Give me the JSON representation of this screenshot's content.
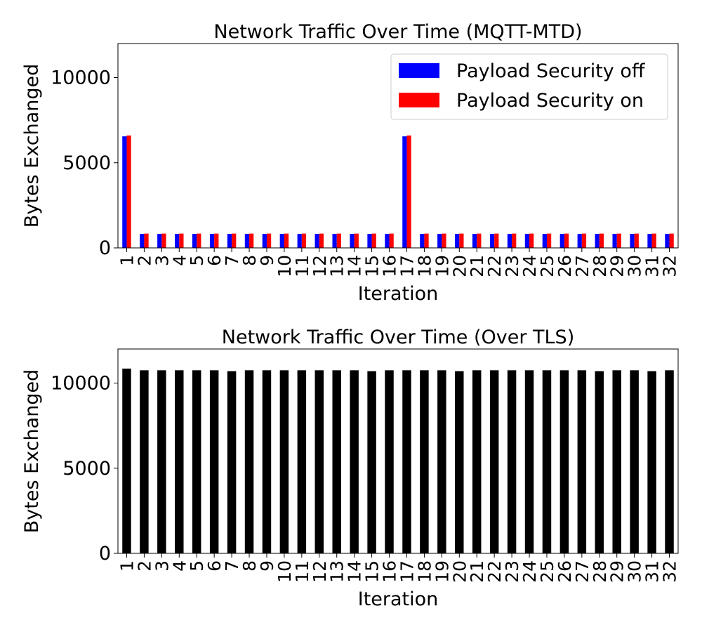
{
  "chart_data": [
    {
      "type": "bar",
      "title": "Network Traffic Over Time (MQTT-MTD)",
      "xlabel": "Iteration",
      "ylabel": "Bytes Exchanged",
      "ylim": [
        0,
        12000
      ],
      "yticks": [
        0,
        5000,
        10000
      ],
      "grid": false,
      "legend_position": "top-right",
      "categories": [
        "1",
        "2",
        "3",
        "4",
        "5",
        "6",
        "7",
        "8",
        "9",
        "10",
        "11",
        "12",
        "13",
        "14",
        "15",
        "16",
        "17",
        "18",
        "19",
        "20",
        "21",
        "22",
        "23",
        "24",
        "25",
        "26",
        "27",
        "28",
        "29",
        "30",
        "31",
        "32"
      ],
      "series": [
        {
          "name": "Payload Security off",
          "color": "#0000ff",
          "values": [
            6550,
            820,
            820,
            820,
            820,
            820,
            820,
            820,
            820,
            820,
            820,
            820,
            820,
            820,
            820,
            820,
            6550,
            820,
            820,
            820,
            820,
            820,
            820,
            820,
            820,
            820,
            820,
            820,
            820,
            820,
            820,
            820
          ]
        },
        {
          "name": "Payload Security on",
          "color": "#ff0000",
          "values": [
            6600,
            840,
            840,
            840,
            840,
            840,
            840,
            840,
            840,
            840,
            840,
            840,
            840,
            840,
            840,
            840,
            6600,
            840,
            840,
            840,
            840,
            840,
            840,
            840,
            840,
            840,
            840,
            840,
            840,
            840,
            840,
            840
          ]
        }
      ]
    },
    {
      "type": "bar",
      "title": "Network Traffic Over Time (Over TLS)",
      "xlabel": "Iteration",
      "ylabel": "Bytes Exchanged",
      "ylim": [
        0,
        12000
      ],
      "yticks": [
        0,
        5000,
        10000
      ],
      "grid": false,
      "categories": [
        "1",
        "2",
        "3",
        "4",
        "5",
        "6",
        "7",
        "8",
        "9",
        "10",
        "11",
        "12",
        "13",
        "14",
        "15",
        "16",
        "17",
        "18",
        "19",
        "20",
        "21",
        "22",
        "23",
        "24",
        "25",
        "26",
        "27",
        "28",
        "29",
        "30",
        "31",
        "32"
      ],
      "series": [
        {
          "color": "#000000",
          "values": [
            10850,
            10750,
            10750,
            10750,
            10750,
            10750,
            10700,
            10750,
            10750,
            10750,
            10750,
            10750,
            10750,
            10750,
            10700,
            10750,
            10750,
            10750,
            10750,
            10700,
            10750,
            10750,
            10750,
            10750,
            10750,
            10750,
            10750,
            10700,
            10750,
            10750,
            10700,
            10750
          ]
        }
      ]
    }
  ]
}
